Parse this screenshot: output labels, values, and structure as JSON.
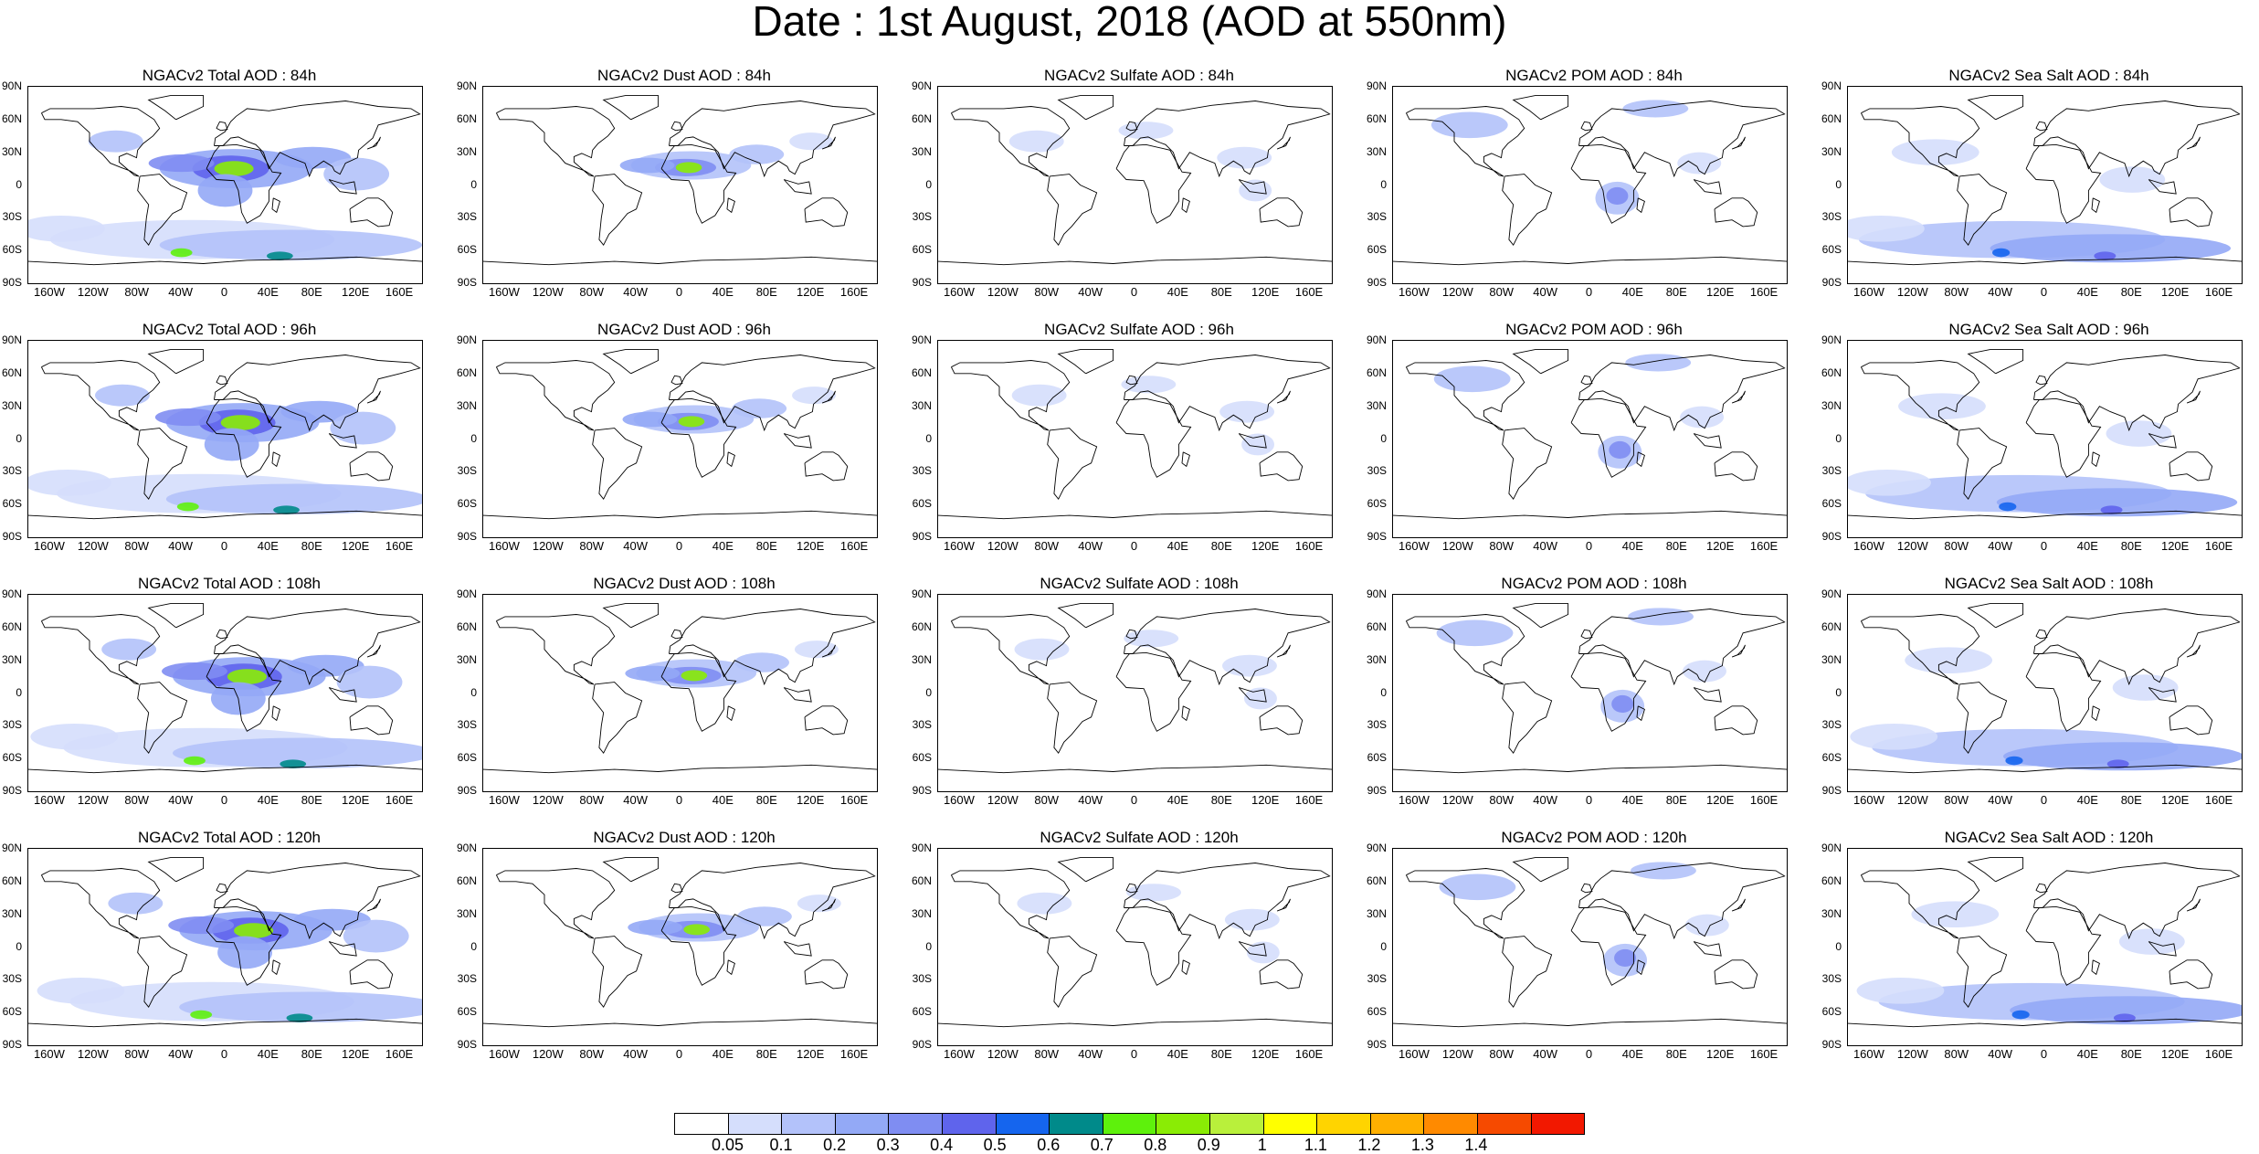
{
  "title": "Date : 1st August, 2018 (AOD at 550nm)",
  "lat_labels": [
    "90N",
    "60N",
    "30N",
    "0",
    "30S",
    "60S",
    "90S"
  ],
  "lon_labels": [
    "160W",
    "120W",
    "80W",
    "40W",
    "0",
    "40E",
    "80E",
    "120E",
    "160E"
  ],
  "panels": [
    {
      "title": "NGACv2 Total AOD : 84h",
      "species": "total",
      "hour": 84
    },
    {
      "title": "NGACv2 Dust AOD : 84h",
      "species": "dust",
      "hour": 84
    },
    {
      "title": "NGACv2 Sulfate AOD : 84h",
      "species": "sulfate",
      "hour": 84
    },
    {
      "title": "NGACv2 POM AOD : 84h",
      "species": "pom",
      "hour": 84
    },
    {
      "title": "NGACv2 Sea Salt AOD : 84h",
      "species": "seasalt",
      "hour": 84
    },
    {
      "title": "NGACv2 Total AOD : 96h",
      "species": "total",
      "hour": 96
    },
    {
      "title": "NGACv2 Dust AOD : 96h",
      "species": "dust",
      "hour": 96
    },
    {
      "title": "NGACv2 Sulfate AOD : 96h",
      "species": "sulfate",
      "hour": 96
    },
    {
      "title": "NGACv2 POM AOD : 96h",
      "species": "pom",
      "hour": 96
    },
    {
      "title": "NGACv2 Sea Salt AOD : 96h",
      "species": "seasalt",
      "hour": 96
    },
    {
      "title": "NGACv2 Total AOD : 108h",
      "species": "total",
      "hour": 108
    },
    {
      "title": "NGACv2 Dust AOD : 108h",
      "species": "dust",
      "hour": 108
    },
    {
      "title": "NGACv2 Sulfate AOD : 108h",
      "species": "sulfate",
      "hour": 108
    },
    {
      "title": "NGACv2 POM AOD : 108h",
      "species": "pom",
      "hour": 108
    },
    {
      "title": "NGACv2 Sea Salt AOD : 108h",
      "species": "seasalt",
      "hour": 108
    },
    {
      "title": "NGACv2 Total AOD : 120h",
      "species": "total",
      "hour": 120
    },
    {
      "title": "NGACv2 Dust AOD : 120h",
      "species": "dust",
      "hour": 120
    },
    {
      "title": "NGACv2 Sulfate AOD : 120h",
      "species": "sulfate",
      "hour": 120
    },
    {
      "title": "NGACv2 POM AOD : 120h",
      "species": "pom",
      "hour": 120
    },
    {
      "title": "NGACv2 Sea Salt  AOD : 120h",
      "species": "seasalt",
      "hour": 120
    }
  ],
  "colorbar": {
    "colors": [
      "#ffffff",
      "#d5defc",
      "#b3c2fa",
      "#93a9f6",
      "#7f8df2",
      "#5f64ec",
      "#1565ee",
      "#008a8a",
      "#5ef10c",
      "#8aec05",
      "#b9f03b",
      "#ffff00",
      "#ffd400",
      "#ffb000",
      "#ff8a00",
      "#f64a00",
      "#f21800"
    ],
    "labels": [
      "0.05",
      "0.1",
      "0.2",
      "0.3",
      "0.4",
      "0.5",
      "0.6",
      "0.7",
      "0.8",
      "0.9",
      "1",
      "1.1",
      "1.2",
      "1.3",
      "1.4"
    ]
  }
}
